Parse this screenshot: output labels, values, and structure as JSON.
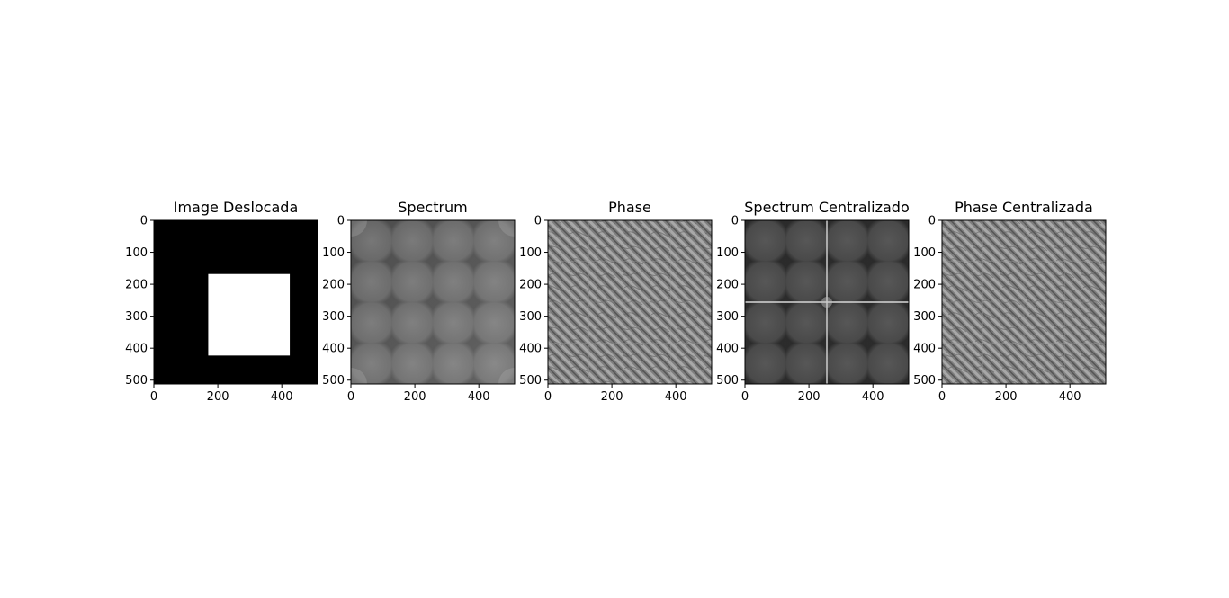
{
  "chart_data": [
    {
      "type": "heatmap",
      "title": "Image Deslocada",
      "xticks": [
        0,
        200,
        400
      ],
      "yticks": [
        0,
        100,
        200,
        300,
        400,
        500
      ],
      "xlim": [
        0,
        512
      ],
      "ylim": [
        512,
        0
      ],
      "colormap": "gray",
      "content": "shifted-square",
      "square": {
        "x0": 170,
        "x1": 425,
        "y0": 168,
        "y1": 423
      }
    },
    {
      "type": "heatmap",
      "title": "Spectrum",
      "xticks": [
        0,
        200,
        400
      ],
      "yticks": [
        0,
        100,
        200,
        300,
        400,
        500
      ],
      "xlim": [
        0,
        512
      ],
      "ylim": [
        512,
        0
      ],
      "colormap": "gray",
      "content": "log-magnitude-spectrum"
    },
    {
      "type": "heatmap",
      "title": "Phase",
      "xticks": [
        0,
        200,
        400
      ],
      "yticks": [
        0,
        100,
        200,
        300,
        400,
        500
      ],
      "xlim": [
        0,
        512
      ],
      "ylim": [
        512,
        0
      ],
      "colormap": "gray",
      "content": "phase"
    },
    {
      "type": "heatmap",
      "title": "Spectrum Centralizado",
      "xticks": [
        0,
        200,
        400
      ],
      "yticks": [
        0,
        100,
        200,
        300,
        400,
        500
      ],
      "xlim": [
        0,
        512
      ],
      "ylim": [
        512,
        0
      ],
      "colormap": "gray",
      "content": "centered-log-magnitude-spectrum"
    },
    {
      "type": "heatmap",
      "title": "Phase Centralizada",
      "xticks": [
        0,
        200,
        400
      ],
      "yticks": [
        0,
        100,
        200,
        300,
        400,
        500
      ],
      "xlim": [
        0,
        512
      ],
      "ylim": [
        512,
        0
      ],
      "colormap": "gray",
      "content": "centered-phase"
    }
  ]
}
